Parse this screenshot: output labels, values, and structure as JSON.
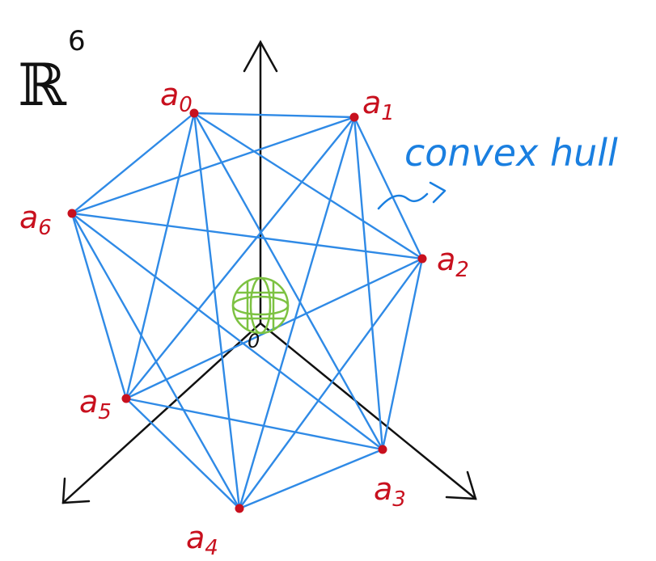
{
  "space": {
    "symbol": "ℝ",
    "exponent": "6"
  },
  "annotation": {
    "text": "convex hull",
    "color": "#1a7fe0"
  },
  "colors": {
    "edge": "#2f8ae6",
    "axis": "#111111",
    "vertex": "#c8101e",
    "ball": "#7dc242"
  },
  "axes": [
    "up",
    "down-left",
    "down-right"
  ],
  "origin_label": "0",
  "vertices": [
    {
      "id": "a0",
      "label": "a",
      "subscript": "0"
    },
    {
      "id": "a1",
      "label": "a",
      "subscript": "1"
    },
    {
      "id": "a2",
      "label": "a",
      "subscript": "2"
    },
    {
      "id": "a3",
      "label": "a",
      "subscript": "3"
    },
    {
      "id": "a4",
      "label": "a",
      "subscript": "4"
    },
    {
      "id": "a5",
      "label": "a",
      "subscript": "5"
    },
    {
      "id": "a6",
      "label": "a",
      "subscript": "6"
    }
  ],
  "edges": "complete graph on all vertices"
}
